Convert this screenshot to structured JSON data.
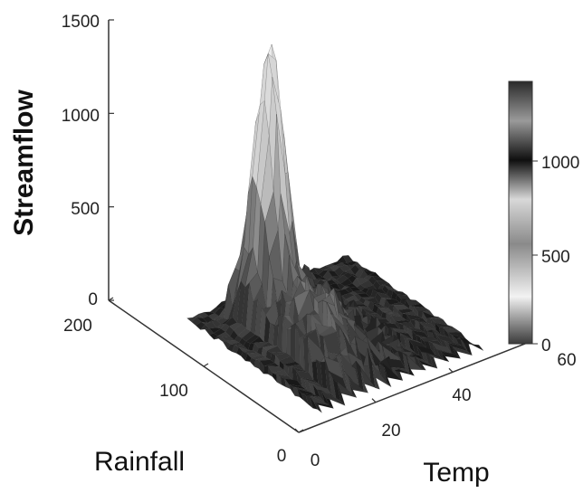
{
  "chart_data": {
    "type": "surface3d",
    "zlabel": "Streamflow",
    "xlabel": "Temp",
    "ylabel": "Rainfall",
    "z_ticks": [
      "1500",
      "1000",
      "500",
      "0"
    ],
    "y_ticks": [
      "200",
      "100",
      "0"
    ],
    "x_ticks": [
      "0",
      "20",
      "40",
      "60"
    ],
    "zlim": [
      0,
      1500
    ],
    "ylim": [
      0,
      200
    ],
    "xlim": [
      0,
      60
    ],
    "colorbar": {
      "ticks": [
        "1000",
        "500",
        "0"
      ],
      "range": [
        0,
        1400
      ]
    },
    "peak": {
      "temp": 22,
      "rainfall": 120,
      "streamflow": 1400
    },
    "colors": {
      "axis": "#333333",
      "surface_low": "#2a2a2a",
      "surface_high": "#e6e6e6"
    }
  }
}
